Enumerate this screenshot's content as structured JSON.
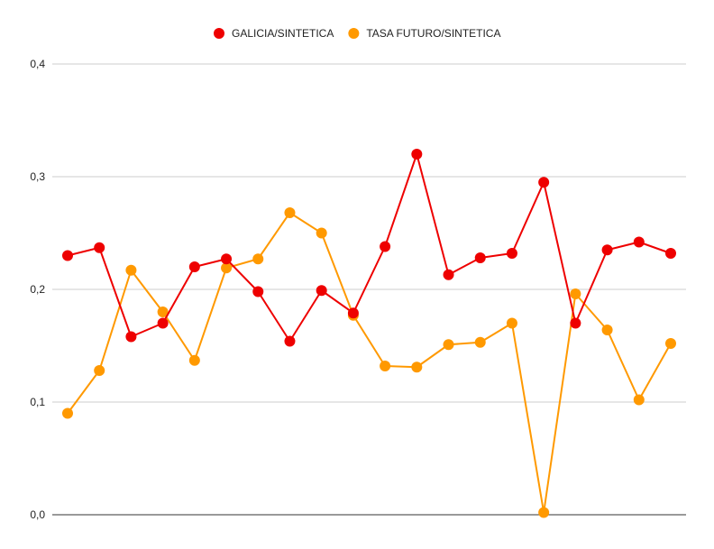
{
  "chart_data": {
    "type": "line",
    "title": "",
    "xlabel": "",
    "ylabel": "",
    "ylim": [
      0,
      0.4
    ],
    "y_ticks": [
      {
        "value": 0.0,
        "label": "0,0"
      },
      {
        "value": 0.1,
        "label": "0,1"
      },
      {
        "value": 0.2,
        "label": "0,2"
      },
      {
        "value": 0.3,
        "label": "0,3"
      },
      {
        "value": 0.4,
        "label": "0,4"
      }
    ],
    "grid": true,
    "legend_position": "top-center",
    "x": [
      1,
      2,
      3,
      4,
      5,
      6,
      7,
      8,
      9,
      10,
      11,
      12,
      13,
      14,
      15,
      16,
      17,
      18,
      19,
      20
    ],
    "series": [
      {
        "name": "GALICIA/SINTETICA",
        "color": "#ee0000",
        "values": [
          0.23,
          0.237,
          0.158,
          0.17,
          0.22,
          0.227,
          0.198,
          0.154,
          0.199,
          0.179,
          0.238,
          0.32,
          0.213,
          0.228,
          0.232,
          0.295,
          0.17,
          0.235,
          0.242,
          0.232
        ]
      },
      {
        "name": "TASA FUTURO/SINTETICA",
        "color": "#ff9900",
        "values": [
          0.09,
          0.128,
          0.217,
          0.18,
          0.137,
          0.219,
          0.227,
          0.268,
          0.25,
          0.177,
          0.132,
          0.131,
          0.151,
          0.153,
          0.17,
          0.002,
          0.196,
          0.164,
          0.102,
          0.152
        ]
      }
    ]
  }
}
